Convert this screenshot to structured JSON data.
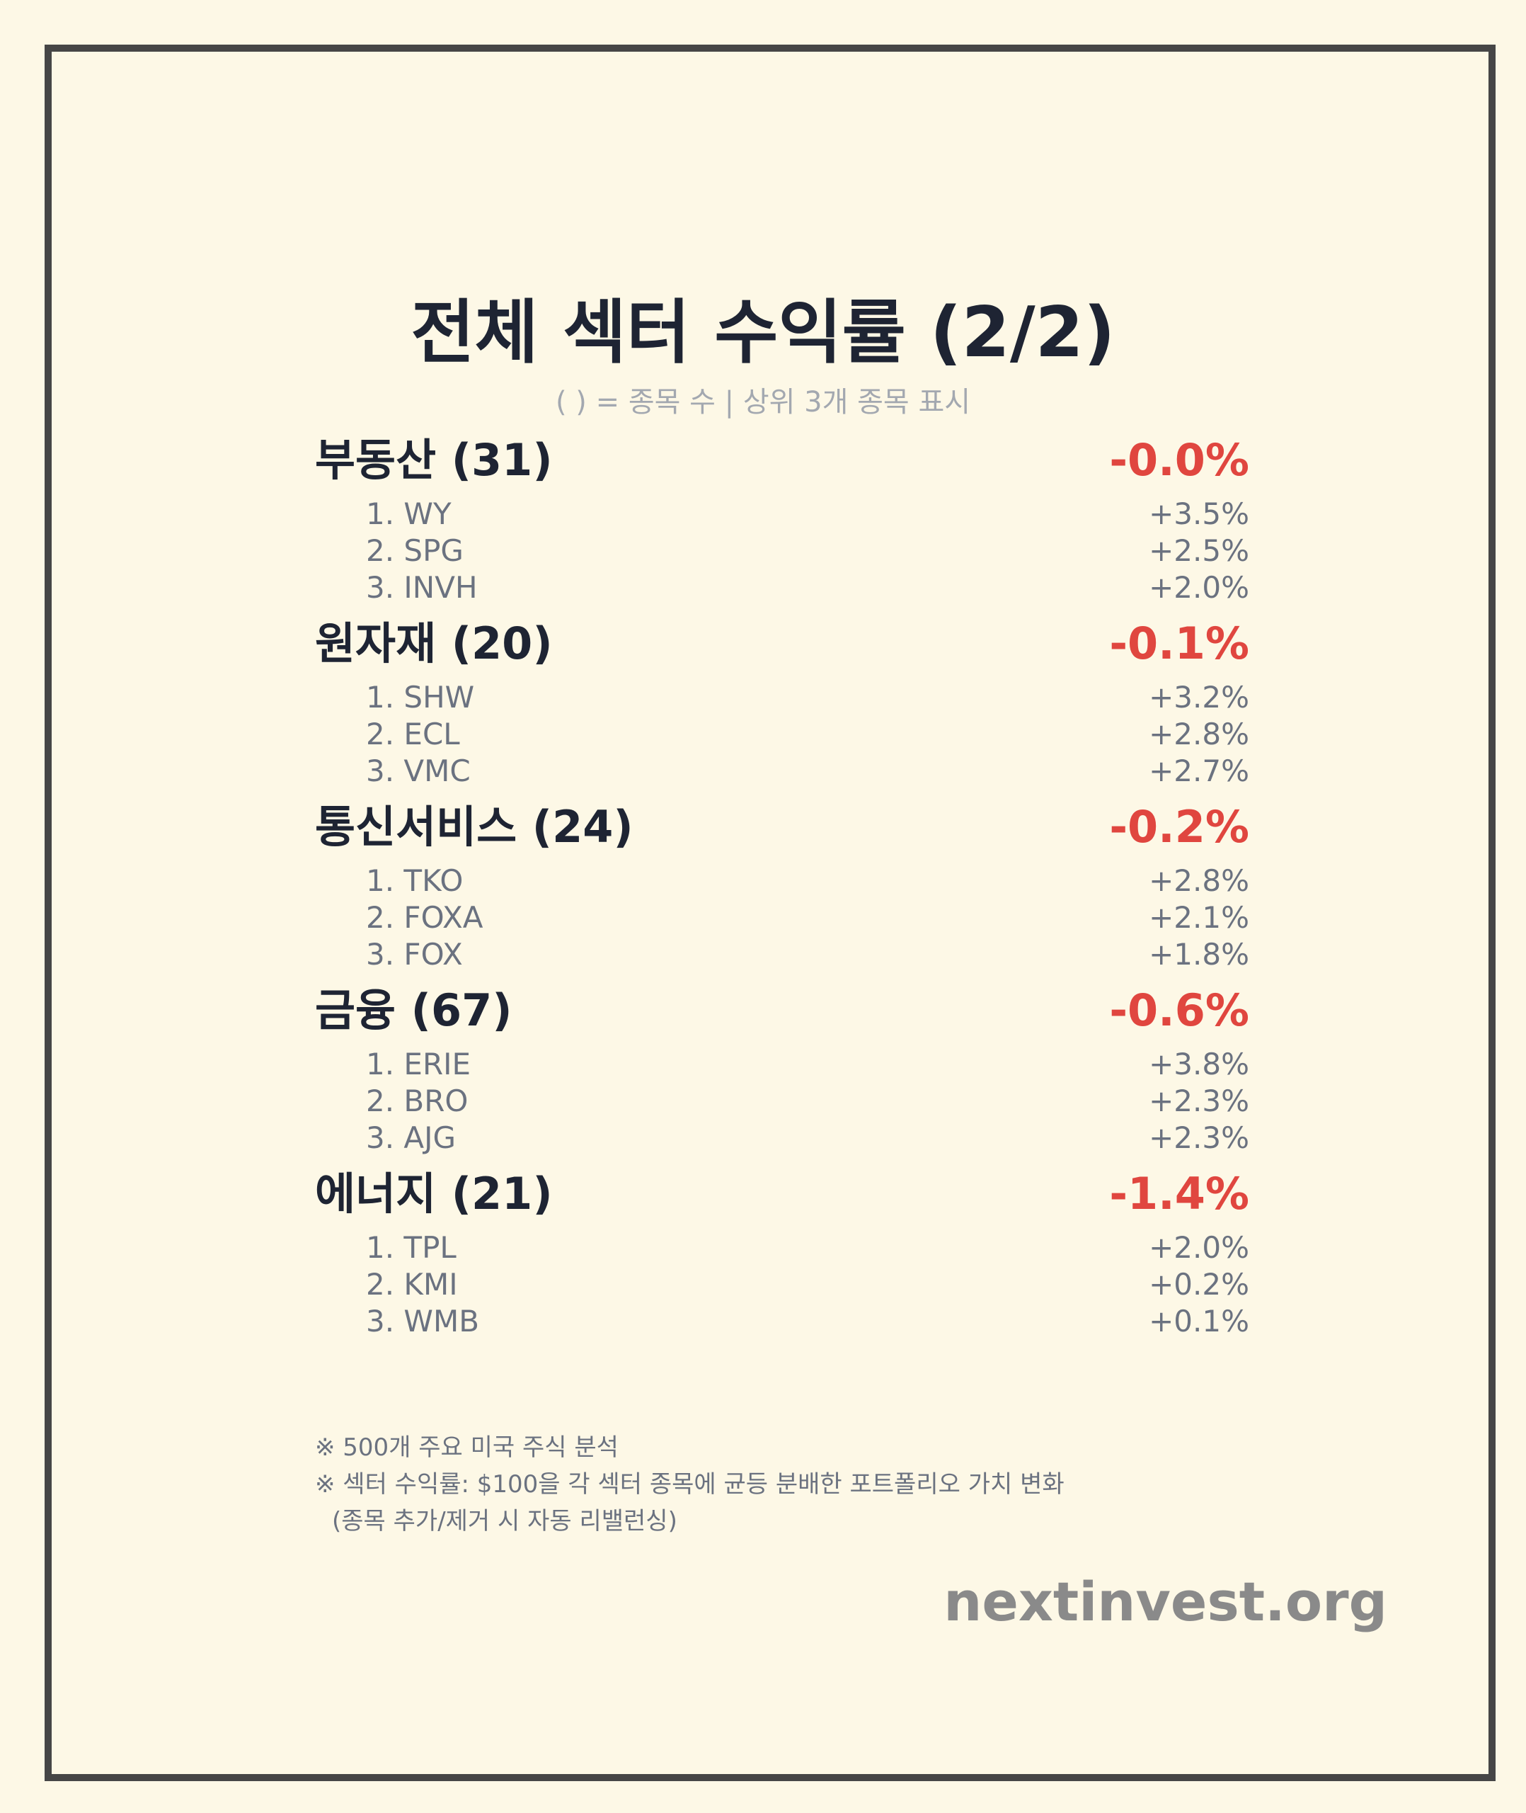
{
  "title": "전체 섹터 수익률 (2/2)",
  "subtitle": "( ) = 종목 수 | 상위 3개 종목 표시",
  "sectors": [
    {
      "name": "부동산 (31)",
      "return": "-0.0%",
      "stocks": [
        {
          "name": "1. WY",
          "return": "+3.5%"
        },
        {
          "name": "2. SPG",
          "return": "+2.5%"
        },
        {
          "name": "3. INVH",
          "return": "+2.0%"
        }
      ]
    },
    {
      "name": "원자재 (20)",
      "return": "-0.1%",
      "stocks": [
        {
          "name": "1. SHW",
          "return": "+3.2%"
        },
        {
          "name": "2. ECL",
          "return": "+2.8%"
        },
        {
          "name": "3. VMC",
          "return": "+2.7%"
        }
      ]
    },
    {
      "name": "통신서비스 (24)",
      "return": "-0.2%",
      "stocks": [
        {
          "name": "1. TKO",
          "return": "+2.8%"
        },
        {
          "name": "2. FOXA",
          "return": "+2.1%"
        },
        {
          "name": "3. FOX",
          "return": "+1.8%"
        }
      ]
    },
    {
      "name": "금융 (67)",
      "return": "-0.6%",
      "stocks": [
        {
          "name": "1. ERIE",
          "return": "+3.8%"
        },
        {
          "name": "2. BRO",
          "return": "+2.3%"
        },
        {
          "name": "3. AJG",
          "return": "+2.3%"
        }
      ]
    },
    {
      "name": "에너지 (21)",
      "return": "-1.4%",
      "stocks": [
        {
          "name": "1. TPL",
          "return": "+2.0%"
        },
        {
          "name": "2. KMI",
          "return": "+0.2%"
        },
        {
          "name": "3. WMB",
          "return": "+0.1%"
        }
      ]
    }
  ],
  "notes": [
    "※ 500개 주요 미국 주식 분석",
    "※ 섹터 수익률: $100을 각 섹터 종목에 균등 분배한 포트폴리오 가치 변화",
    "(종목 추가/제거 시 자동 리밸런싱)"
  ],
  "site": "nextinvest.org",
  "colors": {
    "background": "#fdf8e6",
    "border": "#464646",
    "title": "#1e2433",
    "negative": "#e0463f",
    "muted": "#6b7280",
    "site": "#8a8a8a"
  }
}
